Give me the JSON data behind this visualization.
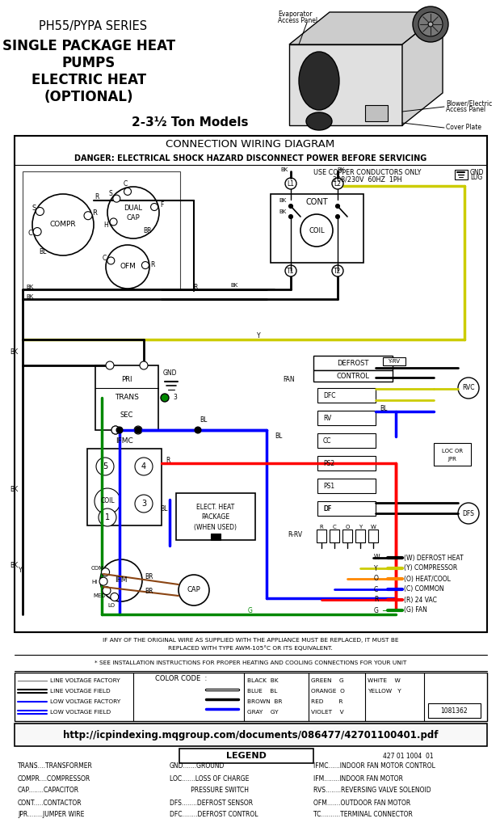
{
  "title_line1": "PH55/PYPA SERIES",
  "title_line2": "SINGLE PACKAGE HEAT",
  "title_line3": "PUMPS",
  "title_line4": "ELECTRIC HEAT",
  "title_line5": "(OPTIONAL)",
  "subtitle": "2-3½ Ton Models",
  "diagram_title": "CONNECTION WIRING DIAGRAM",
  "danger_text": "DANGER: ELECTRICAL SHOCK HAZARD DISCONNECT POWER BEFORE SERVICING",
  "copper_text": "USE COPPER CONDUCTORS ONLY",
  "voltage_text": "208/230V  60HZ  1PH",
  "url": "http://icpindexing.mqgroup.com/documents/086477/42701100401.pdf",
  "legend_title": "LEGEND",
  "part_number": "427 01 1004  01",
  "doc_number": "1081362",
  "warning1": "IF ANY OF THE ORIGINAL WIRE AS SUPPLIED WITH THE APPLIANCE MUST BE REPLACED, IT MUST BE",
  "warning2": "REPLACED WITH TYPE AWM-105°C OR ITS EQUIVALENT.",
  "warning3": "* SEE INSTALLATION INSTRUCTIONS FOR PROPER HEATING AND COOLING CONNECTIONS FOR YOUR UNIT",
  "color_code_title": "COLOR CODE  :",
  "colors_left": [
    "BLACK  BK",
    "BLUE    BL",
    "BROWN  BR",
    "GRAY    GY"
  ],
  "colors_mid": [
    "GREEN    G",
    "ORANGE  O",
    "RED        R",
    "VIOLET    V"
  ],
  "colors_right": [
    "WHITE    W",
    "YELLOW   Y"
  ],
  "line_types": [
    "LINE VOLTAGE FACTORY",
    "LINE VOLTAGE FIELD",
    "LOW VOLTAGE FACTORY",
    "LOW VOLTAGE FIELD"
  ],
  "legend_left": [
    "TRANS....TRANSFORMER",
    "COMPR....COMPRESSOR",
    "CAP........CAPACITOR",
    "CONT.....CONTACTOR",
    "JPR........JUMPER WIRE"
  ],
  "legend_mid": [
    "GND.......GROUND",
    "LOC.......LOSS OF CHARGE",
    "           PRESSURE SWITCH",
    "DFS........DEFROST SENSOR",
    "DFC........DEFROST CONTROL"
  ],
  "legend_right": [
    "IFMC......INDOOR FAN MOTOR CONTROL",
    "IFM........INDOOR FAN MOTOR",
    "RVS........REVERSING VALVE SOLENOID",
    "OFM.......OUTDOOR FAN MOTOR",
    "TC..........TERMINAL CONNECTOR"
  ],
  "bg_color": "#ffffff",
  "wire_colors": {
    "black": "#000000",
    "blue": "#0000ff",
    "red": "#ff0000",
    "yellow": "#cccc00",
    "green": "#008800",
    "orange": "#ff8800",
    "brown": "#8B4513",
    "gray": "#888888"
  }
}
